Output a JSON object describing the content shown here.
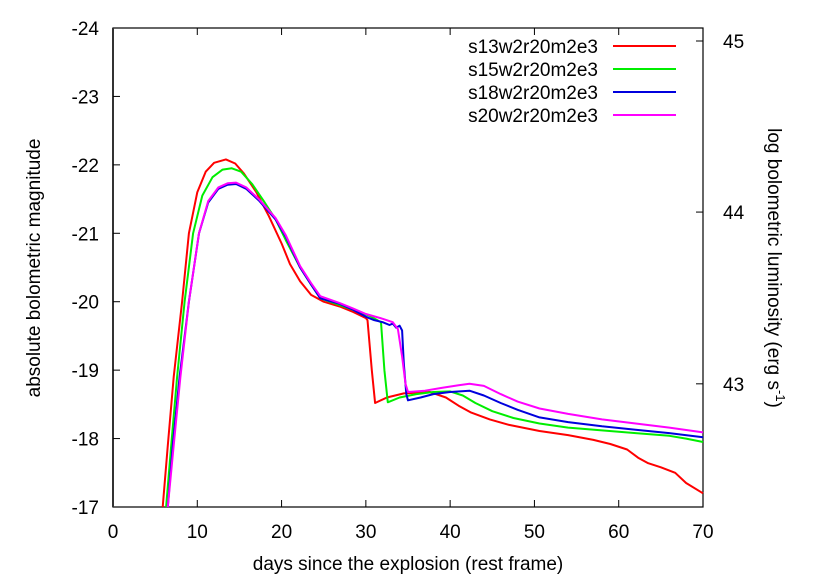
{
  "chart_data": {
    "type": "line",
    "title": "",
    "xlabel": "days since the explosion (rest frame)",
    "ylabel": "absolute bolometric magnitude",
    "y2label": "log bolometric luminosity (erg s",
    "y2label_sup": "-1",
    "y2label_end": ")",
    "xlim": [
      0,
      70
    ],
    "ylim": [
      -17,
      -24
    ],
    "y2_ticks": [
      {
        "value": 45,
        "mag": -23.81
      },
      {
        "value": 44,
        "mag": -21.31
      },
      {
        "value": 43,
        "mag": -18.8
      }
    ],
    "x_ticks": [
      0,
      10,
      20,
      30,
      40,
      50,
      60,
      70
    ],
    "y_ticks": [
      -24,
      -23,
      -22,
      -21,
      -20,
      -19,
      -18,
      -17
    ],
    "grid": false,
    "legend_position": "top-right",
    "series": [
      {
        "name": "s13w2r20m2e3",
        "color": "#ff0000",
        "points": [
          [
            5.9,
            -17.0
          ],
          [
            6.5,
            -17.9
          ],
          [
            7.2,
            -18.9
          ],
          [
            8.2,
            -20.0
          ],
          [
            9.0,
            -21.0
          ],
          [
            10.0,
            -21.6
          ],
          [
            11.0,
            -21.9
          ],
          [
            12.0,
            -22.03
          ],
          [
            13.4,
            -22.08
          ],
          [
            14.5,
            -22.02
          ],
          [
            15.5,
            -21.88
          ],
          [
            17.0,
            -21.6
          ],
          [
            18.5,
            -21.25
          ],
          [
            20.0,
            -20.85
          ],
          [
            21.0,
            -20.55
          ],
          [
            22.2,
            -20.3
          ],
          [
            23.5,
            -20.1
          ],
          [
            25.0,
            -20.0
          ],
          [
            26.9,
            -19.93
          ],
          [
            28.5,
            -19.85
          ],
          [
            30.0,
            -19.76
          ],
          [
            30.2,
            -19.73
          ],
          [
            30.7,
            -19.0
          ],
          [
            31.1,
            -18.52
          ],
          [
            32.5,
            -18.6
          ],
          [
            34.5,
            -18.66
          ],
          [
            37.6,
            -18.68
          ],
          [
            39.5,
            -18.6
          ],
          [
            41.0,
            -18.48
          ],
          [
            42.5,
            -18.38
          ],
          [
            44.7,
            -18.28
          ],
          [
            47.0,
            -18.2
          ],
          [
            50.6,
            -18.11
          ],
          [
            54.0,
            -18.05
          ],
          [
            57.0,
            -17.98
          ],
          [
            59.0,
            -17.92
          ],
          [
            61.0,
            -17.84
          ],
          [
            62.3,
            -17.72
          ],
          [
            63.5,
            -17.64
          ],
          [
            65.0,
            -17.58
          ],
          [
            66.7,
            -17.5
          ],
          [
            68.0,
            -17.35
          ],
          [
            70.0,
            -17.2
          ]
        ]
      },
      {
        "name": "s15w2r20m2e3",
        "color": "#00ee00",
        "points": [
          [
            6.3,
            -17.0
          ],
          [
            6.9,
            -17.9
          ],
          [
            7.6,
            -18.9
          ],
          [
            8.5,
            -20.0
          ],
          [
            9.5,
            -21.0
          ],
          [
            10.6,
            -21.55
          ],
          [
            11.8,
            -21.82
          ],
          [
            13.0,
            -21.93
          ],
          [
            14.1,
            -21.95
          ],
          [
            15.2,
            -21.9
          ],
          [
            16.5,
            -21.72
          ],
          [
            18.0,
            -21.45
          ],
          [
            19.3,
            -21.2
          ],
          [
            20.5,
            -20.9
          ],
          [
            22.2,
            -20.5
          ],
          [
            23.5,
            -20.25
          ],
          [
            24.6,
            -20.05
          ],
          [
            26.9,
            -19.95
          ],
          [
            28.5,
            -19.88
          ],
          [
            30.5,
            -19.79
          ],
          [
            31.8,
            -19.7
          ],
          [
            32.2,
            -19.0
          ],
          [
            32.6,
            -18.53
          ],
          [
            34.0,
            -18.6
          ],
          [
            36.0,
            -18.65
          ],
          [
            38.0,
            -18.68
          ],
          [
            40.0,
            -18.69
          ],
          [
            41.5,
            -18.63
          ],
          [
            43.0,
            -18.52
          ],
          [
            45.0,
            -18.4
          ],
          [
            47.5,
            -18.3
          ],
          [
            50.6,
            -18.22
          ],
          [
            54.0,
            -18.16
          ],
          [
            58.0,
            -18.12
          ],
          [
            62.0,
            -18.08
          ],
          [
            66.0,
            -18.04
          ],
          [
            68.0,
            -18.0
          ],
          [
            70.0,
            -17.95
          ]
        ]
      },
      {
        "name": "s18w2r20m2e3",
        "color": "#0000dd",
        "points": [
          [
            6.5,
            -17.0
          ],
          [
            7.1,
            -17.9
          ],
          [
            7.9,
            -18.9
          ],
          [
            9.0,
            -20.0
          ],
          [
            10.2,
            -21.0
          ],
          [
            11.3,
            -21.45
          ],
          [
            12.5,
            -21.65
          ],
          [
            13.6,
            -21.71
          ],
          [
            14.6,
            -21.72
          ],
          [
            15.8,
            -21.65
          ],
          [
            17.3,
            -21.48
          ],
          [
            19.3,
            -21.2
          ],
          [
            20.5,
            -20.95
          ],
          [
            22.2,
            -20.5
          ],
          [
            23.5,
            -20.25
          ],
          [
            24.6,
            -20.05
          ],
          [
            26.9,
            -19.97
          ],
          [
            28.5,
            -19.88
          ],
          [
            30.0,
            -19.78
          ],
          [
            31.0,
            -19.73
          ],
          [
            32.0,
            -19.7
          ],
          [
            32.8,
            -19.66
          ],
          [
            33.2,
            -19.68
          ],
          [
            33.6,
            -19.62
          ],
          [
            34.0,
            -19.65
          ],
          [
            34.3,
            -19.58
          ],
          [
            34.5,
            -19.1
          ],
          [
            34.8,
            -18.65
          ],
          [
            35.0,
            -18.56
          ],
          [
            36.5,
            -18.6
          ],
          [
            38.0,
            -18.65
          ],
          [
            40.0,
            -18.68
          ],
          [
            42.3,
            -18.7
          ],
          [
            44.0,
            -18.63
          ],
          [
            46.0,
            -18.52
          ],
          [
            48.0,
            -18.42
          ],
          [
            50.6,
            -18.31
          ],
          [
            54.0,
            -18.24
          ],
          [
            58.0,
            -18.18
          ],
          [
            62.0,
            -18.13
          ],
          [
            66.0,
            -18.08
          ],
          [
            70.0,
            -18.02
          ]
        ]
      },
      {
        "name": "s20w2r20m2e3",
        "color": "#ff00ff",
        "points": [
          [
            6.5,
            -17.0
          ],
          [
            7.2,
            -17.9
          ],
          [
            8.0,
            -18.9
          ],
          [
            9.0,
            -20.0
          ],
          [
            10.2,
            -21.0
          ],
          [
            11.3,
            -21.47
          ],
          [
            12.5,
            -21.67
          ],
          [
            13.6,
            -21.73
          ],
          [
            14.6,
            -21.74
          ],
          [
            15.8,
            -21.67
          ],
          [
            17.3,
            -21.5
          ],
          [
            19.3,
            -21.22
          ],
          [
            20.5,
            -20.97
          ],
          [
            22.2,
            -20.52
          ],
          [
            23.5,
            -20.27
          ],
          [
            24.6,
            -20.08
          ],
          [
            26.9,
            -19.98
          ],
          [
            28.5,
            -19.9
          ],
          [
            30.0,
            -19.82
          ],
          [
            32.0,
            -19.75
          ],
          [
            33.2,
            -19.7
          ],
          [
            33.8,
            -19.6
          ],
          [
            34.3,
            -19.2
          ],
          [
            34.7,
            -18.8
          ],
          [
            35.0,
            -18.68
          ],
          [
            37.0,
            -18.7
          ],
          [
            39.0,
            -18.74
          ],
          [
            41.0,
            -18.78
          ],
          [
            42.3,
            -18.8
          ],
          [
            44.0,
            -18.77
          ],
          [
            46.0,
            -18.65
          ],
          [
            48.0,
            -18.54
          ],
          [
            50.6,
            -18.44
          ],
          [
            54.0,
            -18.36
          ],
          [
            58.0,
            -18.28
          ],
          [
            62.0,
            -18.22
          ],
          [
            66.0,
            -18.16
          ],
          [
            70.0,
            -18.09
          ]
        ]
      }
    ]
  }
}
